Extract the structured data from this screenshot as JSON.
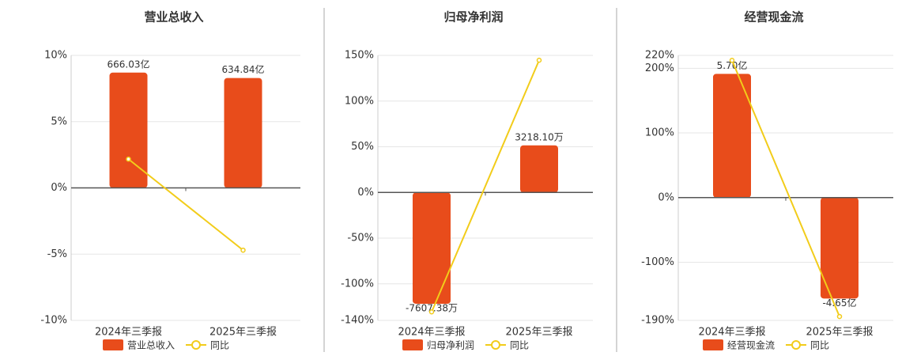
{
  "chart_data": [
    {
      "type": "combo",
      "title": "营业总收入",
      "categories": [
        "2024年三季报",
        "2025年三季报"
      ],
      "series": [
        {
          "name": "营业总收入",
          "color": "#e84c1b",
          "values": [
            666.03,
            634.84
          ],
          "value_labels": [
            "666.03亿",
            "634.84亿"
          ]
        },
        {
          "name": "同比",
          "color": "#f2cc1a",
          "values": [
            2.17,
            -4.7
          ]
        }
      ],
      "ylim": [
        -10,
        10
      ],
      "yticks": [
        {
          "value": -10,
          "label": "-10%"
        },
        {
          "value": -5,
          "label": "-5%"
        },
        {
          "value": 0,
          "label": "0%"
        },
        {
          "value": 5,
          "label": "5%"
        },
        {
          "value": 10,
          "label": "10%"
        }
      ]
    },
    {
      "type": "combo",
      "title": "归母净利润",
      "categories": [
        "2024年三季报",
        "2025年三季报"
      ],
      "series": [
        {
          "name": "归母净利润",
          "color": "#e84c1b",
          "values": [
            -7607.38,
            3218.1
          ],
          "value_labels": [
            "-7607.38万",
            "3218.10万"
          ]
        },
        {
          "name": "同比",
          "color": "#f2cc1a",
          "values": [
            -130.7,
            144.7
          ]
        }
      ],
      "ylim": [
        -140,
        150
      ],
      "yticks": [
        {
          "value": -140,
          "label": "-140%"
        },
        {
          "value": -100,
          "label": "-100%"
        },
        {
          "value": -50,
          "label": "-50%"
        },
        {
          "value": 0,
          "label": "0%"
        },
        {
          "value": 50,
          "label": "50%"
        },
        {
          "value": 100,
          "label": "100%"
        },
        {
          "value": 150,
          "label": "150%"
        }
      ]
    },
    {
      "type": "combo",
      "title": "经营现金流",
      "categories": [
        "2024年三季报",
        "2025年三季报"
      ],
      "series": [
        {
          "name": "经营现金流",
          "color": "#e84c1b",
          "values": [
            5.7,
            -4.65
          ],
          "value_labels": [
            "5.70亿",
            "-4.65亿"
          ]
        },
        {
          "name": "同比",
          "color": "#f2cc1a",
          "values": [
            212.3,
            -184
          ]
        }
      ],
      "ylim": [
        -190,
        220
      ],
      "yticks": [
        {
          "value": -190,
          "label": "-190%"
        },
        {
          "value": -100,
          "label": "-100%"
        },
        {
          "value": 0,
          "label": "0%"
        },
        {
          "value": 100,
          "label": "100%"
        },
        {
          "value": 200,
          "label": "200%"
        },
        {
          "value": 220,
          "label": "220%"
        }
      ]
    }
  ]
}
